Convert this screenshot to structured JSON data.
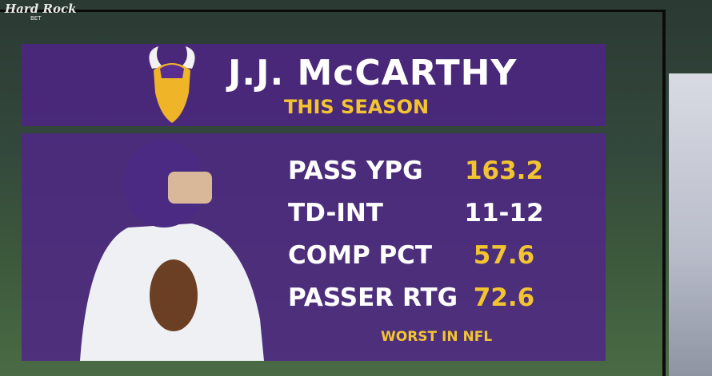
{
  "broadcast": {
    "logo": "Hard Rock",
    "logo_sub": "BET"
  },
  "header": {
    "title": "J.J. McCARTHY",
    "subtitle": "THIS SEASON"
  },
  "stats": [
    {
      "label": "PASS YPG",
      "value": "163.2",
      "color": "#f2c530"
    },
    {
      "label": "TD-INT",
      "value": "11-12",
      "color": "#ffffff"
    },
    {
      "label": "COMP PCT",
      "value": "57.6",
      "color": "#f2c530"
    },
    {
      "label": "PASSER RTG",
      "value": "72.6",
      "color": "#f2c530"
    }
  ],
  "footnote": "WORST IN NFL"
}
